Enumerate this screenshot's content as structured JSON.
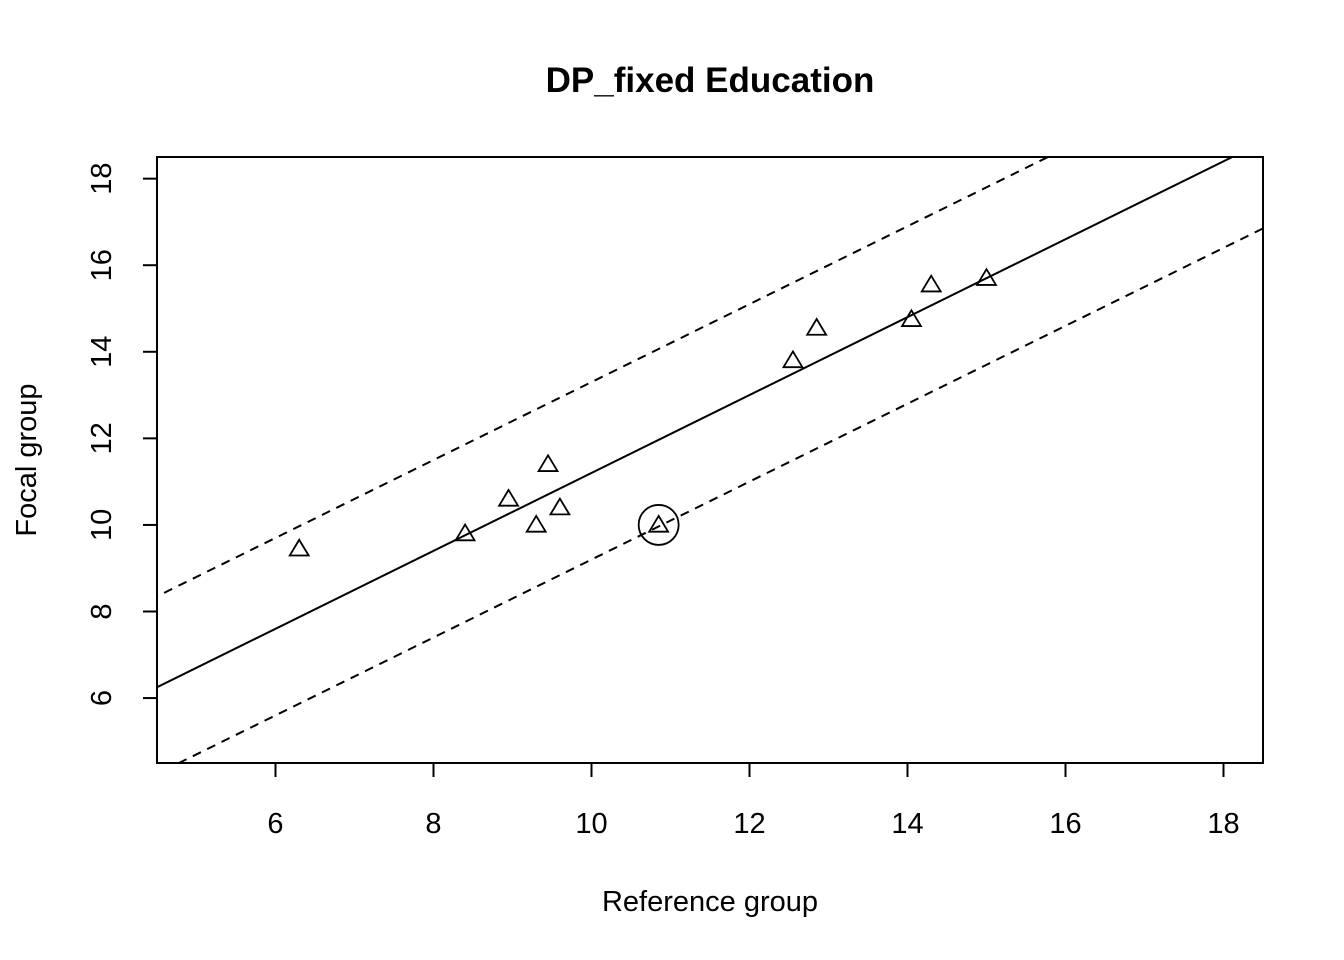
{
  "chart_data": {
    "type": "scatter",
    "title": "DP_fixed Education",
    "xlabel": "Reference group",
    "ylabel": "Focal group",
    "xlim": [
      4.5,
      18.5
    ],
    "ylim": [
      4.5,
      18.5
    ],
    "x_ticks": [
      "6",
      "8",
      "10",
      "12",
      "14",
      "16",
      "18"
    ],
    "y_ticks": [
      "6",
      "8",
      "10",
      "12",
      "14",
      "16",
      "18"
    ],
    "grid": false,
    "marker": "triangle",
    "points": [
      {
        "x": 6.3,
        "y": 9.45
      },
      {
        "x": 8.4,
        "y": 9.8
      },
      {
        "x": 8.95,
        "y": 10.6
      },
      {
        "x": 9.3,
        "y": 10.0
      },
      {
        "x": 9.45,
        "y": 11.4
      },
      {
        "x": 9.6,
        "y": 10.4
      },
      {
        "x": 10.85,
        "y": 10.0
      },
      {
        "x": 12.55,
        "y": 13.8
      },
      {
        "x": 12.85,
        "y": 14.55
      },
      {
        "x": 14.05,
        "y": 14.75
      },
      {
        "x": 14.3,
        "y": 15.55
      },
      {
        "x": 15.0,
        "y": 15.7
      }
    ],
    "highlighted_points": [
      {
        "x": 10.85,
        "y": 10.0
      }
    ],
    "lines": [
      {
        "style": "solid",
        "slope": 0.9,
        "intercept": 2.2
      },
      {
        "style": "dashed",
        "slope": 0.9,
        "intercept": 4.3
      },
      {
        "style": "dashed",
        "slope": 0.9,
        "intercept": 0.2
      }
    ]
  }
}
